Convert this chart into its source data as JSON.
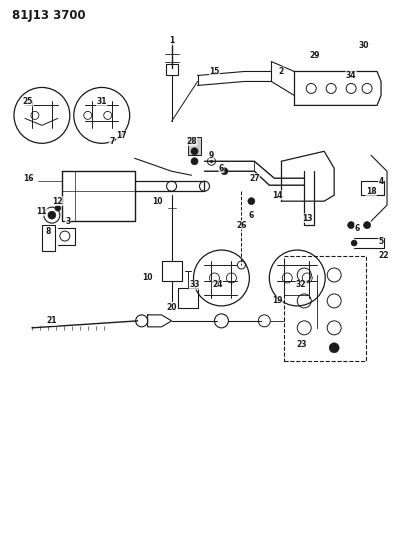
{
  "title": "81J13 3700",
  "bg_color": "#ffffff",
  "fg_color": "#1a1a1a",
  "fig_width": 3.99,
  "fig_height": 5.33,
  "dpi": 100
}
